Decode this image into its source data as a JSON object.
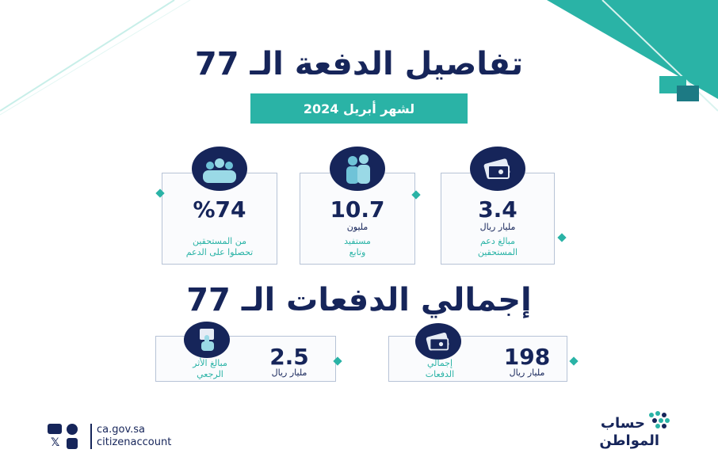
{
  "header": {
    "title": "تفاصيل الدفعة الـ 77",
    "subtitle": "لشهر أبريل 2024"
  },
  "stats_top": [
    {
      "icon": "money-wallet-icon",
      "value": "3.4",
      "unit": "مليار ريال",
      "desc_line1": "مبالغ دعم",
      "desc_line2": "المستحقين"
    },
    {
      "icon": "people-icon",
      "value": "10.7",
      "unit": "مليون",
      "desc_line1": "مستفيد",
      "desc_line2": "وتابع"
    },
    {
      "icon": "group-icon",
      "value": "%74",
      "unit": "",
      "desc_line1": "من المستحقين",
      "desc_line2": "تحصلوا على الدعم"
    }
  ],
  "section2": {
    "title": "إجمالي الدفعات الـ 77"
  },
  "stats_bottom": [
    {
      "icon": "money-wallet-icon",
      "value": "198",
      "unit": "مليار ريال",
      "desc_line1": "إجمالي",
      "desc_line2": "الدفعات"
    },
    {
      "icon": "hand-pointer-icon",
      "value": "2.5",
      "unit": "مليار ريال",
      "desc_line1": "مبالغ الأثر",
      "desc_line2": "الرجعي"
    }
  ],
  "footer": {
    "website": "ca.gov.sa",
    "handle": "citizenaccount",
    "logo_line1": "حساب",
    "logo_line2": "المواطن"
  },
  "colors": {
    "navy": "#16255a",
    "teal": "#2ab3a6"
  }
}
